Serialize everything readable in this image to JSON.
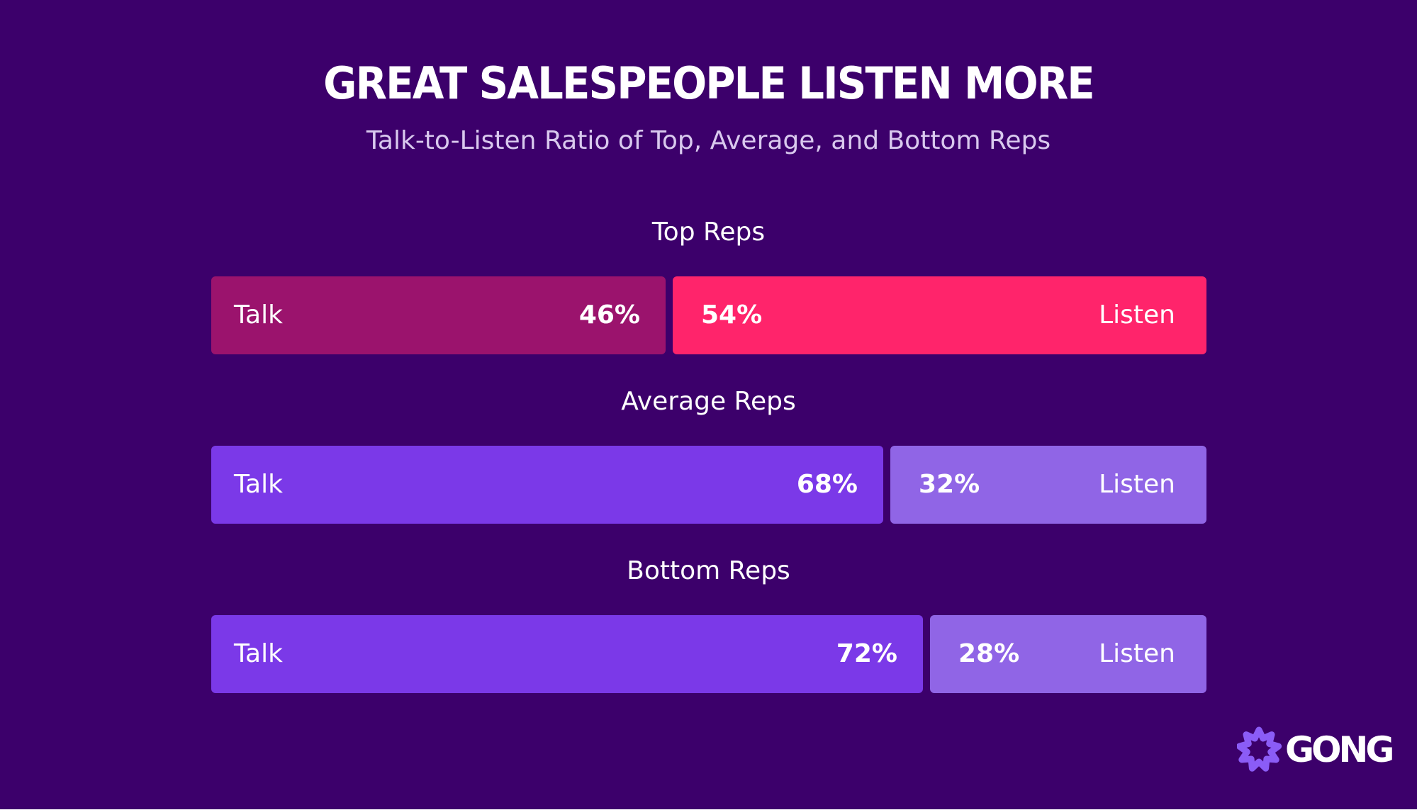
{
  "title": "GREAT SALESPEOPLE LISTEN MORE",
  "subtitle": "Talk-to-Listen Ratio of Top, Average, and Bottom Reps",
  "logo": {
    "text": "GONG",
    "icon": "starburst-icon",
    "color": "#8b5cf6"
  },
  "colors": {
    "background": "#3c006b",
    "top_talk": "#9b136d",
    "top_listen": "#ff246b",
    "other_talk": "#7b39e8",
    "other_listen": "#9065e6"
  },
  "chart_data": {
    "type": "bar",
    "orientation": "horizontal",
    "stacked": true,
    "normalized": true,
    "title": "GREAT SALESPEOPLE LISTEN MORE",
    "subtitle": "Talk-to-Listen Ratio of Top, Average, and Bottom Reps",
    "categories": [
      "Top Reps",
      "Average Reps",
      "Bottom Reps"
    ],
    "series": [
      {
        "name": "Talk",
        "values": [
          46,
          68,
          72
        ],
        "value_labels": [
          "46%",
          "68%",
          "72%"
        ],
        "colors": [
          "#9b136d",
          "#7b39e8",
          "#7b39e8"
        ]
      },
      {
        "name": "Listen",
        "values": [
          54,
          32,
          28
        ],
        "value_labels": [
          "54%",
          "32%",
          "28%"
        ],
        "colors": [
          "#ff246b",
          "#9065e6",
          "#9065e6"
        ]
      }
    ],
    "unit": "%",
    "xlim": [
      0,
      100
    ],
    "grid": false,
    "legend": "none"
  }
}
